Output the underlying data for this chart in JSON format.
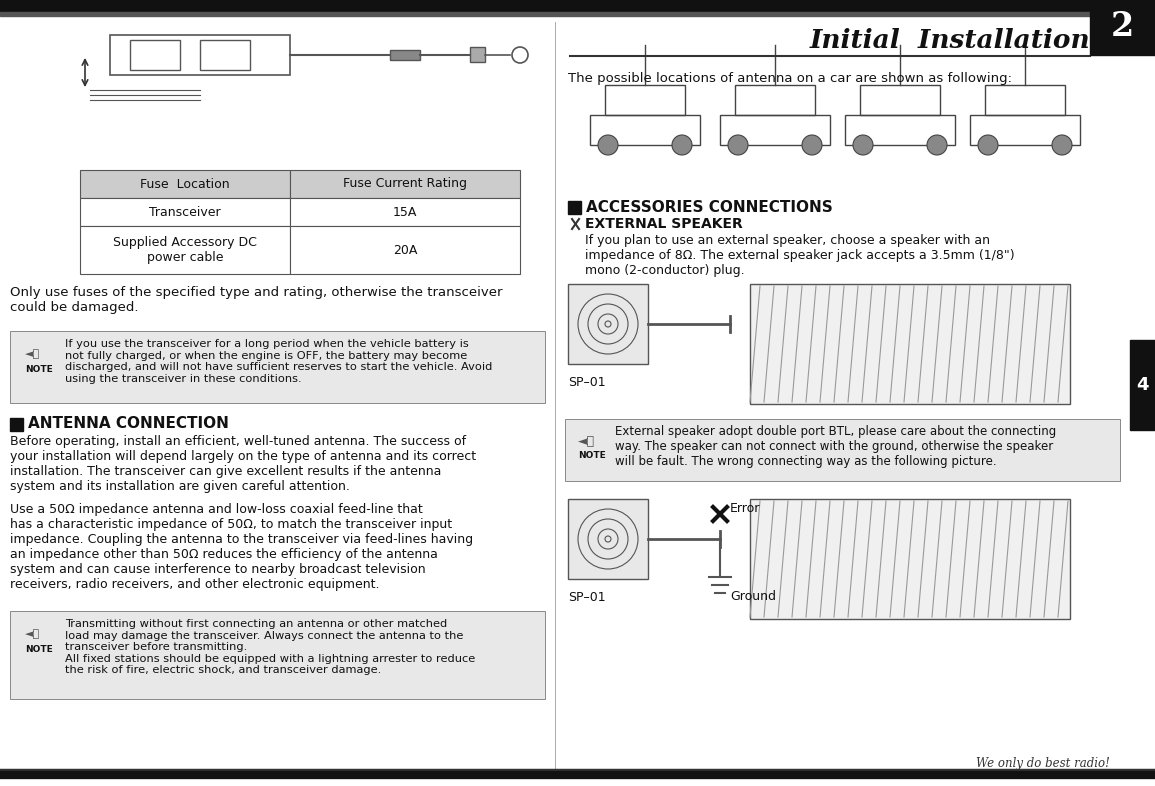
{
  "bg_color": "#ffffff",
  "title": "Initial  Installation",
  "page_num": "2",
  "right_bar_num": "4",
  "fuse_table_header": [
    "Fuse  Location",
    "Fuse Current Rating"
  ],
  "fuse_table_rows": [
    [
      "Transceiver",
      "15A"
    ],
    [
      "Supplied Accessory DC\npower cable",
      "20A"
    ]
  ],
  "fuse_note": "Only use fuses of the specified type and rating, otherwise the transceiver\ncould be damaged.",
  "battery_note": "If you use the transceiver for a long period when the vehicle battery is\nnot fully charged, or when the engine is OFF, the battery may become\ndischarged, and will not have sufficient reserves to start the vehicle. Avoid\nusing the transceiver in these conditions.",
  "antenna_section": "ANTENNA CONNECTION",
  "antenna_para1": "Before operating, install an efficient, well-tuned antenna. The success of\nyour installation will depend largely on the type of antenna and its correct\ninstallation. The transceiver can give excellent results if the antenna\nsystem and its installation are given careful attention.",
  "antenna_para2": "Use a 50Ω impedance antenna and low-loss coaxial feed-line that\nhas a characteristic impedance of 50Ω, to match the transceiver input\nimpedance. Coupling the antenna to the transceiver via feed-lines having\nan impedance other than 50Ω reduces the efficiency of the antenna\nsystem and can cause interference to nearby broadcast television\nreceivers, radio receivers, and other electronic equipment.",
  "antenna_note": "Transmitting without first connecting an antenna or other matched\nload may damage the transceiver. Always connect the antenna to the\ntransceiver before transmitting.\nAll fixed stations should be equipped with a lightning arrester to reduce\nthe risk of fire, electric shock, and transceiver damage.",
  "antenna_text1": "The possible locations of antenna on a car are shown as following:",
  "accessories_title": "ACCESSORIES CONNECTIONS",
  "external_speaker_title": "EXTERNAL SPEAKER",
  "speaker_text": "If you plan to use an external speaker, choose a speaker with an\nimpedance of 8Ω. The external speaker jack accepts a 3.5mm (1/8\")\nmono (2-conductor) plug.",
  "sp01_label": "SP–01",
  "note_text2": "External speaker adopt double port BTL, please care about the connecting\nway. The speaker can not connect with the ground, otherwise the speaker\nwill be fault. The wrong connecting way as the following picture.",
  "error_label": "Error",
  "ground_label": "Ground",
  "sp01_label2": "SP–01",
  "tagline": "We only do best radio!"
}
